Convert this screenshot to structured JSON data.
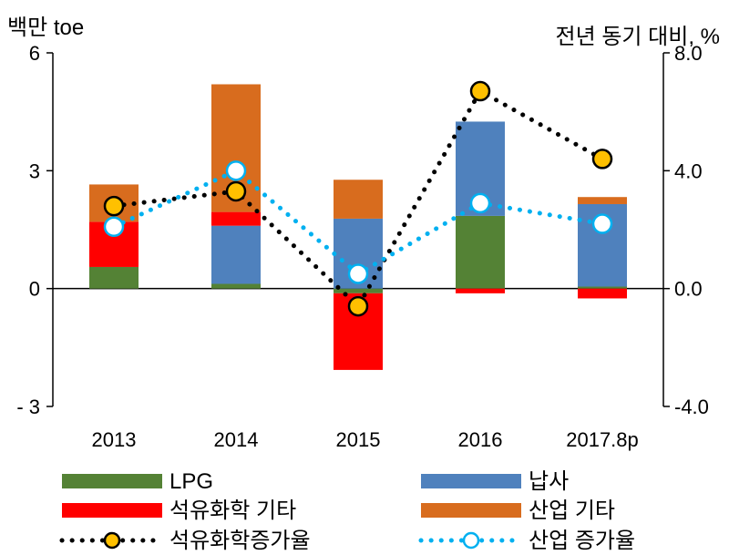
{
  "chart_data": {
    "type": "bar",
    "subtype": "stacked-bar-with-dual-axis-lines",
    "left_unit_label": "백만 toe",
    "right_unit_label": "전년 동기 대비, %",
    "categories": [
      "2013",
      "2014",
      "2015",
      "2016",
      "2017.8p"
    ],
    "left_axis": {
      "ylim": [
        -3,
        6
      ],
      "ticks": [
        6,
        3,
        0,
        -3
      ],
      "tick_labels": [
        "6",
        "3",
        "0",
        "- 3"
      ]
    },
    "right_axis": {
      "ylim": [
        -4,
        8
      ],
      "ticks": [
        8,
        4,
        0,
        -4
      ],
      "tick_labels": [
        "8.0",
        "4.0",
        "0.0",
        "-4.0"
      ]
    },
    "bar_series": [
      {
        "name": "LPG",
        "color": "#548235",
        "values": [
          0.55,
          0.12,
          -0.12,
          1.85,
          0.05
        ]
      },
      {
        "name": "납사",
        "color": "#4f81bd",
        "values": [
          0.0,
          1.48,
          1.78,
          2.4,
          2.1
        ]
      },
      {
        "name": "석유화학 기타",
        "color": "#ff0000",
        "values": [
          1.15,
          0.35,
          -1.95,
          -0.12,
          -0.25
        ]
      },
      {
        "name": "산업 기타",
        "color": "#d86c1e",
        "values": [
          0.95,
          3.25,
          0.99,
          0.0,
          0.18
        ]
      }
    ],
    "line_series": [
      {
        "name": "석유화학증가율",
        "axis": "right",
        "line_color": "#000000",
        "marker_fill": "#ffc000",
        "marker_stroke": "#000000",
        "values": [
          2.8,
          3.3,
          -0.6,
          6.7,
          4.4
        ]
      },
      {
        "name": "산업 증가율",
        "axis": "right",
        "line_color": "#00b0f0",
        "marker_fill": "#ffffff",
        "marker_stroke": "#00b0f0",
        "values": [
          2.1,
          4.0,
          0.5,
          2.9,
          2.2
        ]
      }
    ],
    "legend": {
      "placement": "bottom",
      "columns": 2
    },
    "grid": false
  }
}
